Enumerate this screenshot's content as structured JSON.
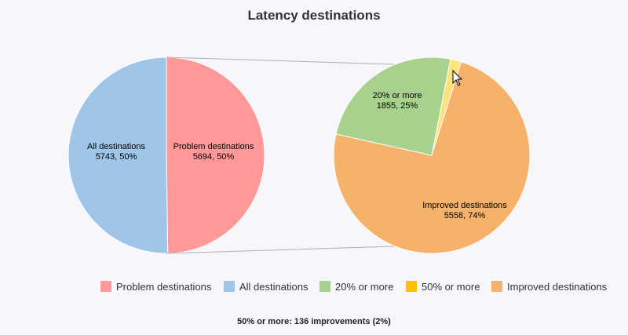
{
  "chart_data": {
    "type": "pie",
    "title": "Latency destinations",
    "left_pie": {
      "slices": [
        {
          "name": "Problem destinations",
          "label_line1": "Problem destinations",
          "label_line2": "5694, 50%",
          "value": 5694,
          "color": "#ff9999"
        },
        {
          "name": "All destinations",
          "label_line1": "All destinations",
          "label_line2": "5743, 50%",
          "value": 5743,
          "color": "#9fc5e8"
        }
      ]
    },
    "right_pie": {
      "slices": [
        {
          "name": "50% or more",
          "label_line1": "",
          "label_line2": "",
          "value": 136,
          "color": "#ffe27a"
        },
        {
          "name": "Improved destinations",
          "label_line1": "Improved destinations",
          "label_line2": "5558, 74%",
          "value": 5558,
          "color": "#f6b26b"
        },
        {
          "name": "20% or more",
          "label_line1": "20% or more",
          "label_line2": "1855, 25%",
          "value": 1855,
          "color": "#a9d18e"
        }
      ]
    },
    "legend": [
      {
        "label": "Problem destinations",
        "color": "#ff9999"
      },
      {
        "label": "All destinations",
        "color": "#9fc5e8"
      },
      {
        "label": "20% or more",
        "color": "#a9d18e"
      },
      {
        "label": "50% or more",
        "color": "#ffc000"
      },
      {
        "label": "Improved destinations",
        "color": "#f6b26b"
      }
    ],
    "legend_position": "bottom",
    "footer": "50% or more: 136 improvements (2%)"
  }
}
